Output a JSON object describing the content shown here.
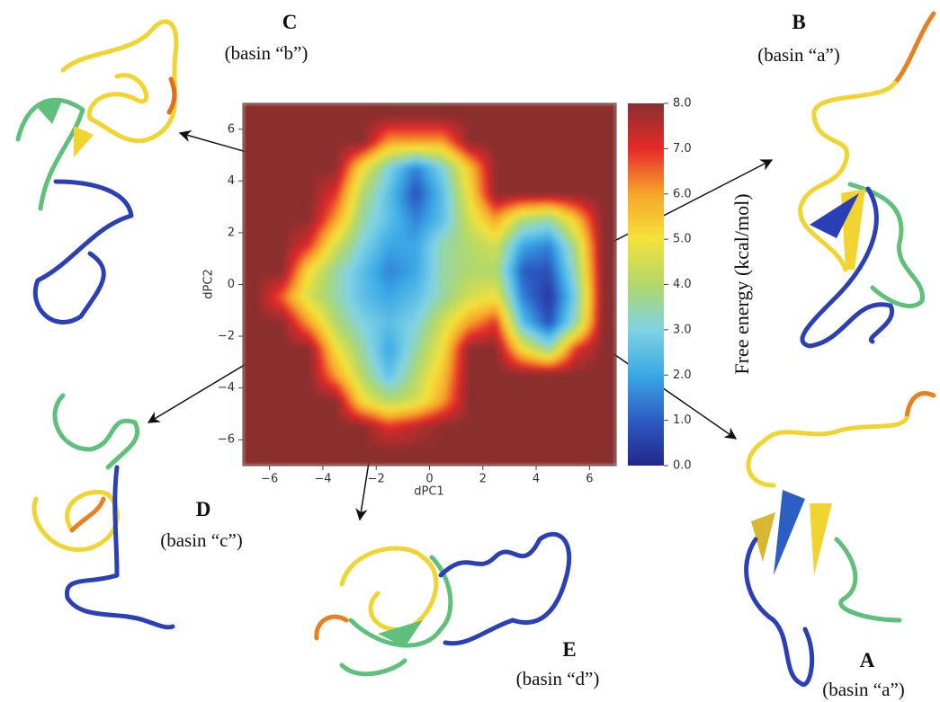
{
  "chart_data": {
    "type": "heatmap",
    "xlabel": "dPC1",
    "ylabel": "dPC2",
    "xlim": [
      -7,
      7
    ],
    "ylim": [
      -7,
      7
    ],
    "xticks": [
      {
        "value": -6,
        "label": "−6"
      },
      {
        "value": -4,
        "label": "−4"
      },
      {
        "value": -2,
        "label": "−2"
      },
      0,
      2,
      4,
      6
    ],
    "yticks": [
      {
        "value": -6,
        "label": "−6"
      },
      {
        "value": -4,
        "label": "−4"
      },
      {
        "value": -2,
        "label": "−2"
      },
      0,
      2,
      4,
      6
    ],
    "x": [
      -6.5,
      -5.5,
      -4.5,
      -3.5,
      -2.5,
      -1.5,
      -0.5,
      0.5,
      1.5,
      2.5,
      3.5,
      4.5,
      5.5,
      6.5
    ],
    "y": [
      6.5,
      5.5,
      4.5,
      3.5,
      2.5,
      1.5,
      0.5,
      -0.5,
      -1.5,
      -2.5,
      -3.5,
      -4.5,
      -5.5,
      -6.5
    ],
    "z": [
      [
        8,
        8,
        8,
        8,
        8,
        8,
        8,
        8,
        8,
        8,
        8,
        8,
        8,
        8
      ],
      [
        8,
        8,
        8,
        8,
        8,
        6,
        6,
        6,
        8,
        8,
        8,
        8,
        8,
        8
      ],
      [
        8,
        8,
        8,
        8,
        5,
        3,
        1.5,
        3,
        5.5,
        8,
        8,
        8,
        8,
        8
      ],
      [
        8,
        8,
        8,
        7,
        4,
        2.5,
        0.8,
        2.5,
        5,
        8,
        8,
        8,
        8,
        8
      ],
      [
        8,
        8,
        8,
        6,
        3.5,
        2.5,
        1.5,
        2.5,
        4.5,
        6,
        4,
        3.5,
        5.5,
        8
      ],
      [
        8,
        8,
        7,
        4.5,
        3,
        2,
        2,
        3.5,
        4,
        4.5,
        2,
        1.5,
        4,
        8
      ],
      [
        8,
        8,
        5,
        3.5,
        2.5,
        1.5,
        2,
        3.5,
        4,
        4,
        1,
        0.8,
        3.5,
        8
      ],
      [
        8,
        6.5,
        4.5,
        3.5,
        2.5,
        2,
        2.5,
        3.5,
        4.5,
        5,
        1.5,
        0.3,
        3,
        8
      ],
      [
        8,
        8,
        6,
        4,
        3,
        2.5,
        3,
        4.5,
        6,
        7,
        2.5,
        0.8,
        3.5,
        8
      ],
      [
        8,
        8,
        8,
        5,
        3.5,
        2,
        3.5,
        5,
        8,
        8,
        5,
        3.5,
        7,
        8
      ],
      [
        8,
        8,
        8,
        6,
        4,
        2.5,
        4,
        5.5,
        8,
        8,
        8,
        8,
        8,
        8
      ],
      [
        8,
        8,
        8,
        8,
        5,
        4,
        4.5,
        6,
        8,
        8,
        8,
        8,
        8,
        8
      ],
      [
        8,
        8,
        8,
        8,
        8,
        7,
        7.5,
        8,
        8,
        8,
        8,
        8,
        8,
        8
      ],
      [
        8,
        8,
        8,
        8,
        8,
        8,
        8,
        8,
        8,
        8,
        8,
        8,
        8,
        8
      ]
    ],
    "colormap": [
      "#24268a",
      "#2c5cc4",
      "#3aa8e6",
      "#7fd3e4",
      "#b0d86a",
      "#f4e23a",
      "#f6a62a",
      "#e62a2a",
      "#8b2f2f"
    ],
    "colorbar": {
      "label": "Free energy (kcal/mol)",
      "lim": [
        0,
        8
      ],
      "ticks": [
        {
          "value": 0,
          "label": "0.0"
        },
        {
          "value": 1,
          "label": "1.0"
        },
        {
          "value": 2,
          "label": "2.0"
        },
        {
          "value": 3,
          "label": "3.0"
        },
        {
          "value": 4,
          "label": "4.0"
        },
        {
          "value": 5,
          "label": "5.0"
        },
        {
          "value": 6,
          "label": "6.0"
        },
        {
          "value": 7,
          "label": "7.0"
        },
        {
          "value": 8,
          "label": "8.0"
        }
      ]
    },
    "annotations": [
      {
        "letter": "C",
        "text": "(basin “b”)"
      },
      {
        "letter": "B",
        "text": "(basin “a”)"
      },
      {
        "letter": "D",
        "text": "(basin “c”)"
      },
      {
        "letter": "E",
        "text": "(basin “d”)"
      },
      {
        "letter": "A",
        "text": "(basin “a”)"
      }
    ]
  }
}
